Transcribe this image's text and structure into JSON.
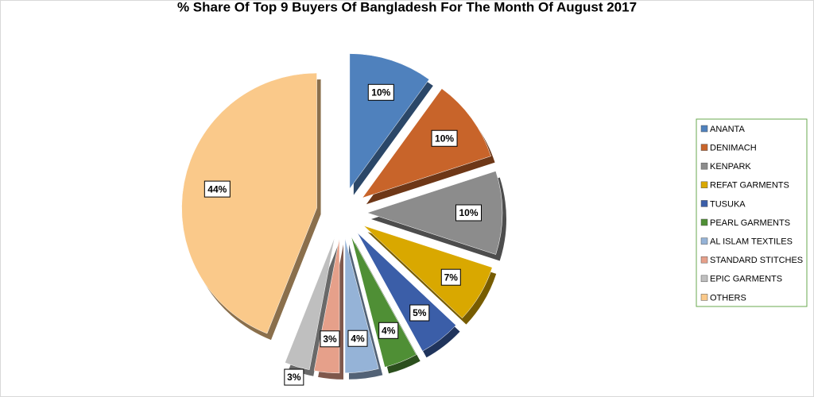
{
  "chart_data": {
    "type": "pie",
    "title": "% Share Of Top 9 Buyers Of Bangladesh For The Month Of August 2017",
    "categories": [
      "ANANTA",
      "DENIMACH",
      "KENPARK",
      "REFAT GARMENTS",
      "TUSUKA",
      "PEARL GARMENTS",
      "AL ISLAM TEXTILES",
      "STANDARD STITCHES",
      "EPIC GARMENTS",
      "OTHERS"
    ],
    "values": [
      10,
      10,
      10,
      7,
      5,
      4,
      4,
      3,
      3,
      44
    ],
    "value_labels": [
      "10%",
      "10%",
      "10%",
      "7%",
      "5%",
      "4%",
      "4%",
      "3%",
      "3%",
      "44%"
    ],
    "colors": [
      "#4f81bd",
      "#c8642a",
      "#8c8c8c",
      "#d9a800",
      "#3b5ea8",
      "#4f8f35",
      "#95b3d7",
      "#e6a08a",
      "#bfbfbf",
      "#fac98a"
    ],
    "legend": "right"
  }
}
